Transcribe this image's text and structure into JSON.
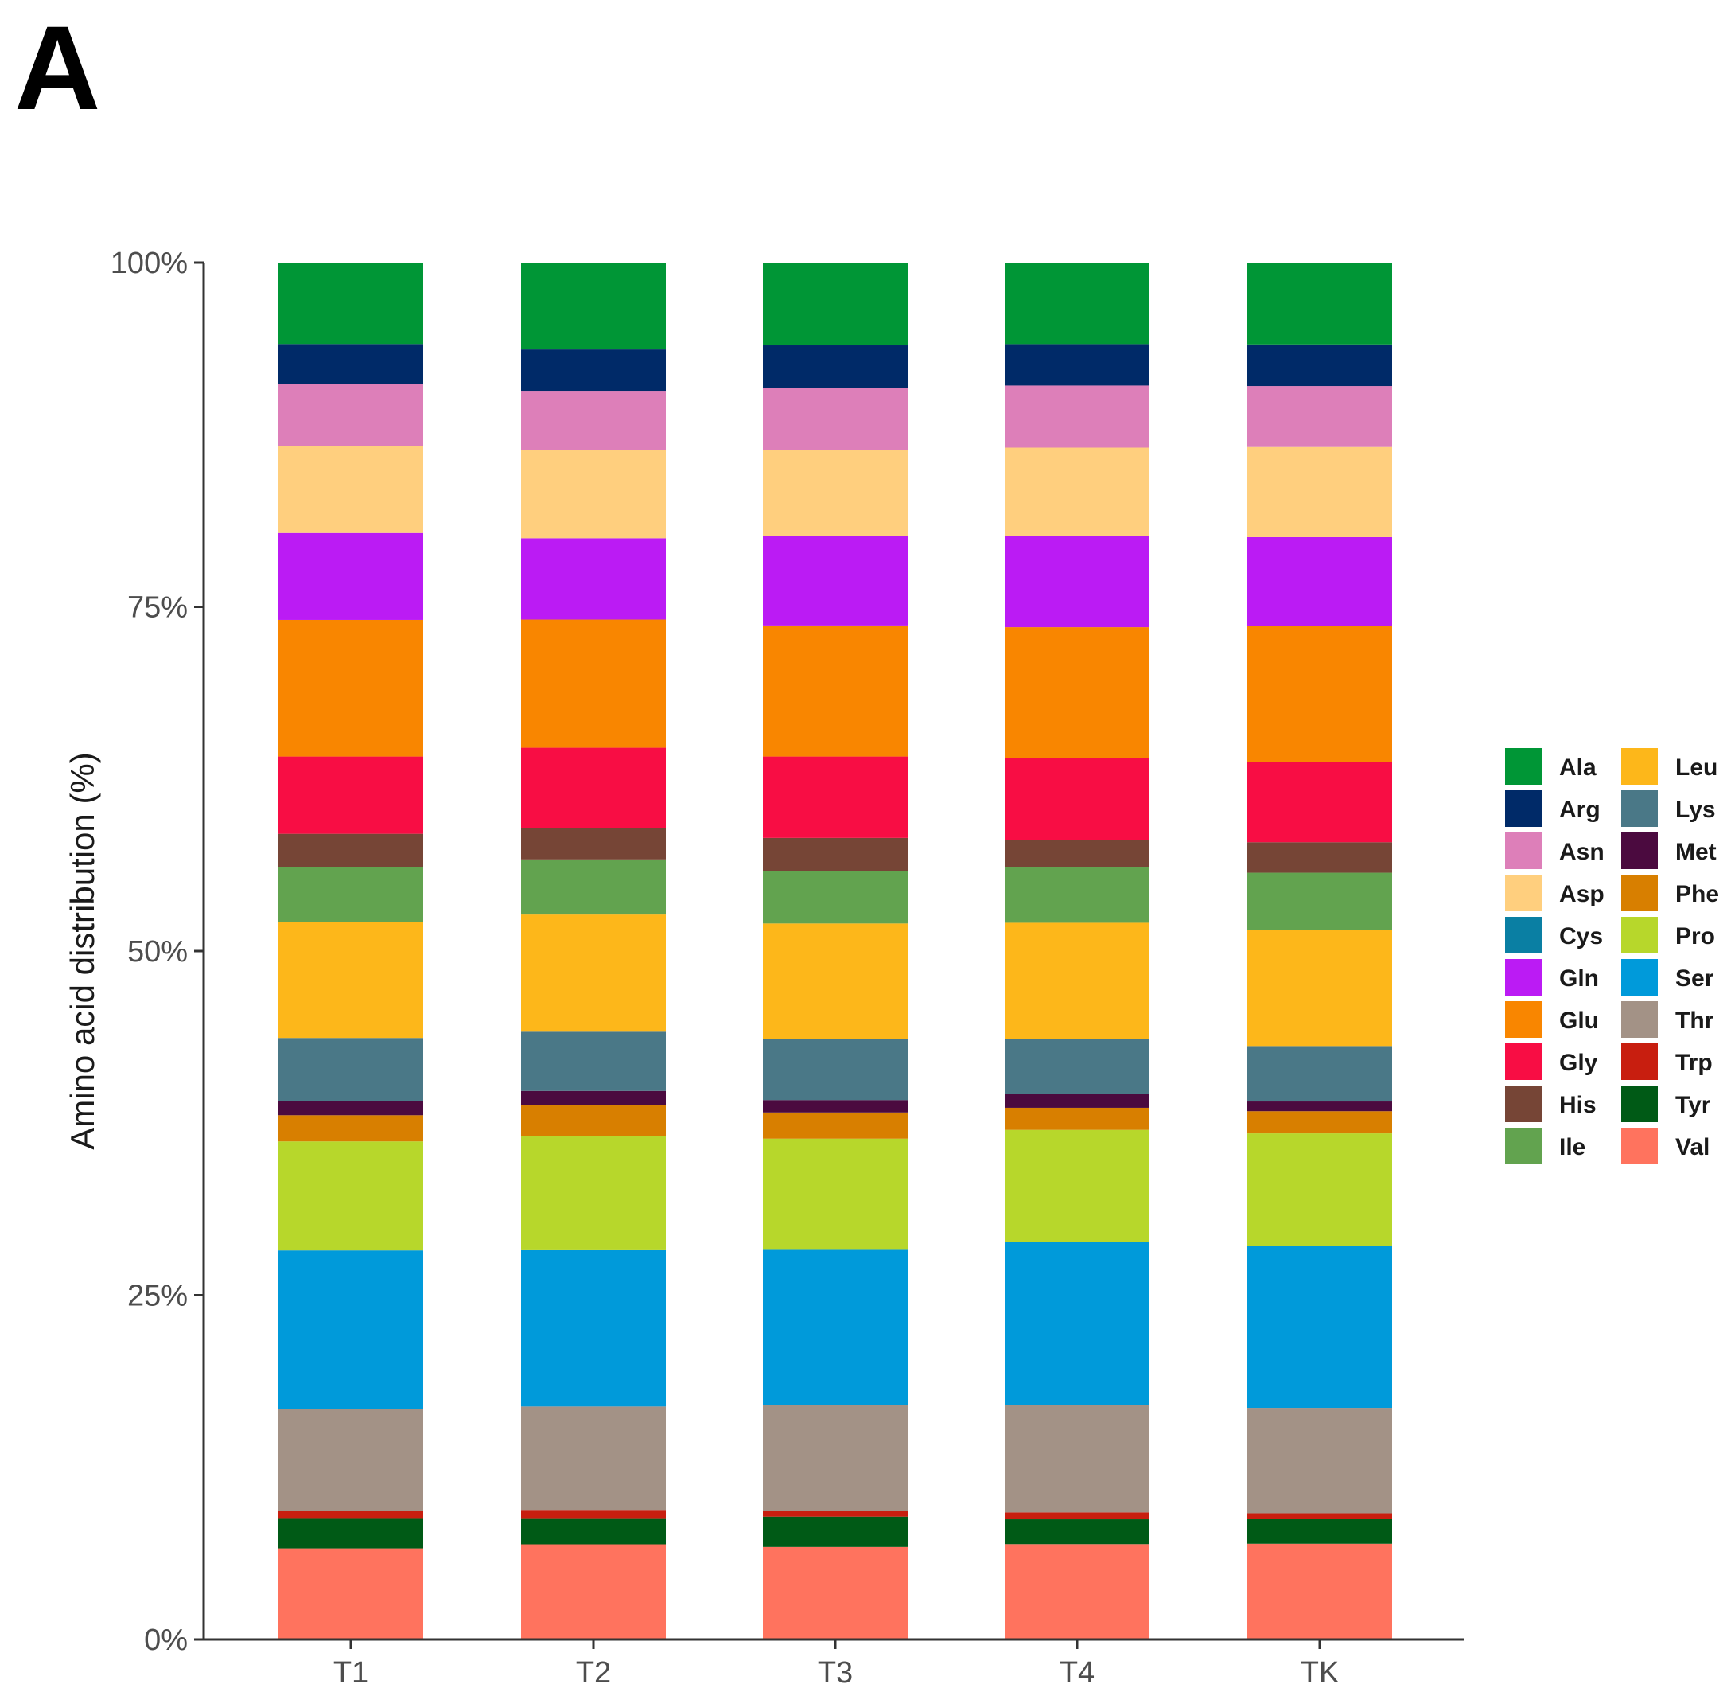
{
  "panel_label": "A",
  "chart_data": {
    "type": "bar",
    "stacked": true,
    "normalized": true,
    "title": "",
    "xlabel": "",
    "ylabel": "Amino acid distribution (%)",
    "ylim": [
      0,
      100
    ],
    "yticks": [
      "0%",
      "25%",
      "50%",
      "75%",
      "100%"
    ],
    "ytick_values": [
      0,
      25,
      50,
      75,
      100
    ],
    "legend_position": "right",
    "categories": [
      "T1",
      "T2",
      "T3",
      "T4",
      "TK"
    ],
    "series": [
      {
        "name": "Val",
        "color": "#FF735E",
        "values": [
          6.6,
          6.9,
          6.7,
          6.9,
          6.9
        ]
      },
      {
        "name": "Tyr",
        "color": "#005A16",
        "values": [
          2.2,
          1.9,
          2.2,
          1.8,
          1.8
        ]
      },
      {
        "name": "Trp",
        "color": "#C81E0F",
        "values": [
          0.5,
          0.6,
          0.4,
          0.5,
          0.4
        ]
      },
      {
        "name": "Thr",
        "color": "#A39286",
        "values": [
          7.4,
          7.5,
          7.7,
          7.8,
          7.6
        ]
      },
      {
        "name": "Ser",
        "color": "#009ADA",
        "values": [
          11.5,
          11.4,
          11.3,
          11.8,
          11.7
        ]
      },
      {
        "name": "Pro",
        "color": "#B7D72B",
        "values": [
          7.9,
          8.2,
          8.0,
          8.1,
          8.1
        ]
      },
      {
        "name": "Phe",
        "color": "#D87F00",
        "values": [
          1.9,
          2.3,
          1.9,
          1.6,
          1.6
        ]
      },
      {
        "name": "Met",
        "color": "#4B0A3F",
        "values": [
          1.0,
          1.0,
          0.9,
          1.0,
          0.7
        ]
      },
      {
        "name": "Lys",
        "color": "#4A7887",
        "values": [
          4.6,
          4.3,
          4.4,
          4.0,
          4.0
        ]
      },
      {
        "name": "Leu",
        "color": "#FDB71A",
        "values": [
          8.4,
          8.5,
          8.4,
          8.4,
          8.4
        ]
      },
      {
        "name": "Ile",
        "color": "#62A34F",
        "values": [
          4.0,
          4.0,
          3.8,
          4.0,
          4.1
        ]
      },
      {
        "name": "His",
        "color": "#764536",
        "values": [
          2.4,
          2.3,
          2.4,
          2.0,
          2.2
        ]
      },
      {
        "name": "Gly",
        "color": "#F80D44",
        "values": [
          5.6,
          5.8,
          5.9,
          5.9,
          5.8
        ]
      },
      {
        "name": "Glu",
        "color": "#F98600",
        "values": [
          9.9,
          9.3,
          9.5,
          9.5,
          9.8
        ]
      },
      {
        "name": "Gln",
        "color": "#BB1BF4",
        "values": [
          6.3,
          5.9,
          6.5,
          6.6,
          6.4
        ]
      },
      {
        "name": "Cys",
        "color": "#0A7FA3",
        "values": [
          0.0,
          0.0,
          0.0,
          0.0,
          0.0
        ]
      },
      {
        "name": "Asp",
        "color": "#FFCF7E",
        "values": [
          6.3,
          6.4,
          6.2,
          6.4,
          6.5
        ]
      },
      {
        "name": "Asn",
        "color": "#DD7FB9",
        "values": [
          4.5,
          4.3,
          4.5,
          4.5,
          4.4
        ]
      },
      {
        "name": "Arg",
        "color": "#002A68",
        "values": [
          2.9,
          3.0,
          3.1,
          3.0,
          3.0
        ]
      },
      {
        "name": "Ala",
        "color": "#009636",
        "values": [
          5.9,
          6.3,
          6.0,
          5.9,
          5.9
        ]
      }
    ],
    "legend": [
      {
        "name": "Ala",
        "color": "#009636"
      },
      {
        "name": "Arg",
        "color": "#002A68"
      },
      {
        "name": "Asn",
        "color": "#DD7FB9"
      },
      {
        "name": "Asp",
        "color": "#FFCF7E"
      },
      {
        "name": "Cys",
        "color": "#0A7FA3"
      },
      {
        "name": "Gln",
        "color": "#BB1BF4"
      },
      {
        "name": "Glu",
        "color": "#F98600"
      },
      {
        "name": "Gly",
        "color": "#F80D44"
      },
      {
        "name": "His",
        "color": "#764536"
      },
      {
        "name": "Ile",
        "color": "#62A34F"
      },
      {
        "name": "Leu",
        "color": "#FDB71A"
      },
      {
        "name": "Lys",
        "color": "#4A7887"
      },
      {
        "name": "Met",
        "color": "#4B0A3F"
      },
      {
        "name": "Phe",
        "color": "#D87F00"
      },
      {
        "name": "Pro",
        "color": "#B7D72B"
      },
      {
        "name": "Ser",
        "color": "#009ADA"
      },
      {
        "name": "Thr",
        "color": "#A39286"
      },
      {
        "name": "Trp",
        "color": "#C81E0F"
      },
      {
        "name": "Tyr",
        "color": "#005A16"
      },
      {
        "name": "Val",
        "color": "#FF735E"
      }
    ]
  }
}
